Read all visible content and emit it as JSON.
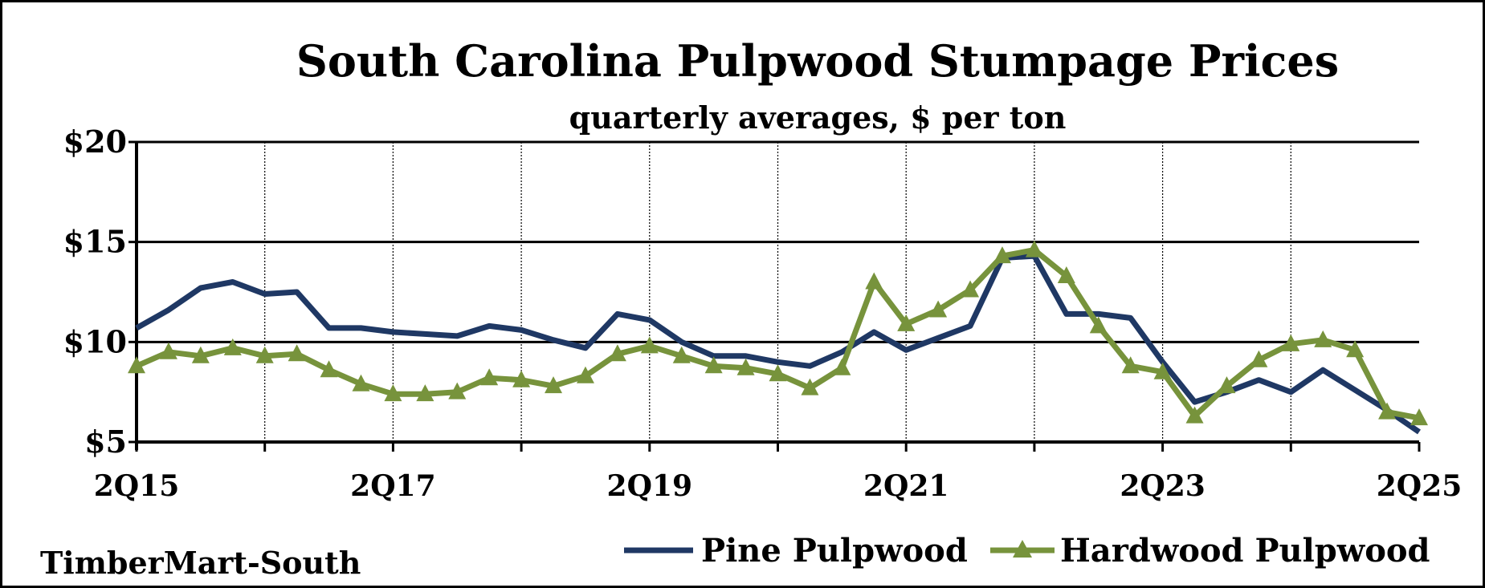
{
  "chart_data": {
    "type": "line",
    "title": "South Carolina Pulpwood Stumpage Prices",
    "subtitle": "quarterly averages, $ per ton",
    "source": "TimberMart-South",
    "xlabel": "",
    "ylabel": "",
    "ylim": [
      5,
      20
    ],
    "y_ticks": [
      5,
      10,
      15,
      20
    ],
    "y_tick_labels": [
      "$5",
      "$10",
      "$15",
      "$20"
    ],
    "x_tick_labels": [
      "2Q15",
      "2Q17",
      "2Q19",
      "2Q21",
      "2Q23",
      "2Q25"
    ],
    "x": [
      "2Q15",
      "3Q15",
      "4Q15",
      "1Q16",
      "2Q16",
      "3Q16",
      "4Q16",
      "1Q17",
      "2Q17",
      "3Q17",
      "4Q17",
      "1Q18",
      "2Q18",
      "3Q18",
      "4Q18",
      "1Q19",
      "2Q19",
      "3Q19",
      "4Q19",
      "1Q20",
      "2Q20",
      "3Q20",
      "4Q20",
      "1Q21",
      "2Q21",
      "3Q21",
      "4Q21",
      "1Q22",
      "2Q22",
      "3Q22",
      "4Q22",
      "1Q23",
      "2Q23",
      "3Q23",
      "4Q23",
      "1Q24",
      "2Q24",
      "3Q24",
      "4Q24",
      "1Q25",
      "2Q25"
    ],
    "grid": true,
    "legend_position": "bottom-right",
    "series": [
      {
        "name": "Pine Pulpwood",
        "color": "#1f3864",
        "marker": "none",
        "values": [
          10.7,
          11.6,
          12.7,
          13.0,
          12.4,
          12.5,
          10.7,
          10.7,
          10.5,
          10.4,
          10.3,
          10.8,
          10.6,
          10.1,
          9.7,
          11.4,
          11.1,
          10.0,
          9.3,
          9.3,
          9.0,
          8.8,
          9.5,
          10.5,
          9.6,
          10.2,
          10.8,
          14.2,
          14.3,
          11.4,
          11.4,
          11.2,
          9.0,
          7.0,
          7.5,
          8.1,
          7.5,
          8.6,
          7.6,
          6.6,
          5.5
        ]
      },
      {
        "name": "Hardwood Pulpwood",
        "color": "#77933c",
        "marker": "triangle",
        "values": [
          8.8,
          9.5,
          9.3,
          9.7,
          9.3,
          9.4,
          8.6,
          7.9,
          7.4,
          7.4,
          7.5,
          8.2,
          8.1,
          7.8,
          8.3,
          9.4,
          9.8,
          9.3,
          8.8,
          8.7,
          8.4,
          7.7,
          8.7,
          13.0,
          10.9,
          11.6,
          12.6,
          14.3,
          14.6,
          13.3,
          10.8,
          8.8,
          8.5,
          6.3,
          7.8,
          9.1,
          9.9,
          10.1,
          9.6,
          6.5,
          6.2
        ]
      }
    ]
  }
}
